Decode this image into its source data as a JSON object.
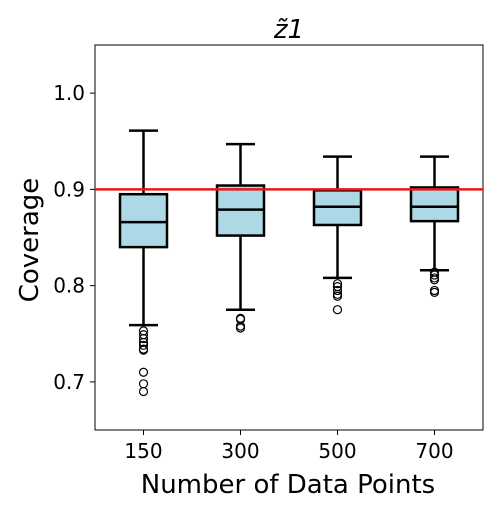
{
  "chart_data": {
    "type": "box",
    "title": "z̃1",
    "xlabel": "Number of Data Points",
    "ylabel": "Coverage",
    "categories": [
      "150",
      "300",
      "500",
      "700"
    ],
    "ylim": [
      0.65,
      1.05
    ],
    "yticks": [
      0.7,
      0.8,
      0.9,
      1.0
    ],
    "ytick_labels": [
      "0.7",
      "0.8",
      "0.9",
      "1.0"
    ],
    "reference_line": 0.9,
    "grid": false,
    "boxes": [
      {
        "category": "150",
        "whisker_low": 0.759,
        "q1": 0.84,
        "median": 0.866,
        "q3": 0.895,
        "whisker_high": 0.961,
        "outliers": [
          0.753,
          0.749,
          0.745,
          0.741,
          0.738,
          0.734,
          0.733,
          0.71,
          0.698,
          0.69
        ]
      },
      {
        "category": "300",
        "whisker_low": 0.775,
        "q1": 0.852,
        "median": 0.879,
        "q3": 0.904,
        "whisker_high": 0.947,
        "outliers": [
          0.766,
          0.765,
          0.758,
          0.756
        ]
      },
      {
        "category": "500",
        "whisker_low": 0.808,
        "q1": 0.863,
        "median": 0.882,
        "q3": 0.899,
        "whisker_high": 0.934,
        "outliers": [
          0.802,
          0.799,
          0.795,
          0.791,
          0.789,
          0.775
        ]
      },
      {
        "category": "700",
        "whisker_low": 0.816,
        "q1": 0.867,
        "median": 0.882,
        "q3": 0.902,
        "whisker_high": 0.934,
        "outliers": [
          0.814,
          0.811,
          0.808,
          0.806,
          0.795,
          0.793
        ]
      }
    ],
    "colors": {
      "box_fill": "#add8e6",
      "reference_line": "#e41a1c",
      "stroke": "#000000"
    }
  }
}
